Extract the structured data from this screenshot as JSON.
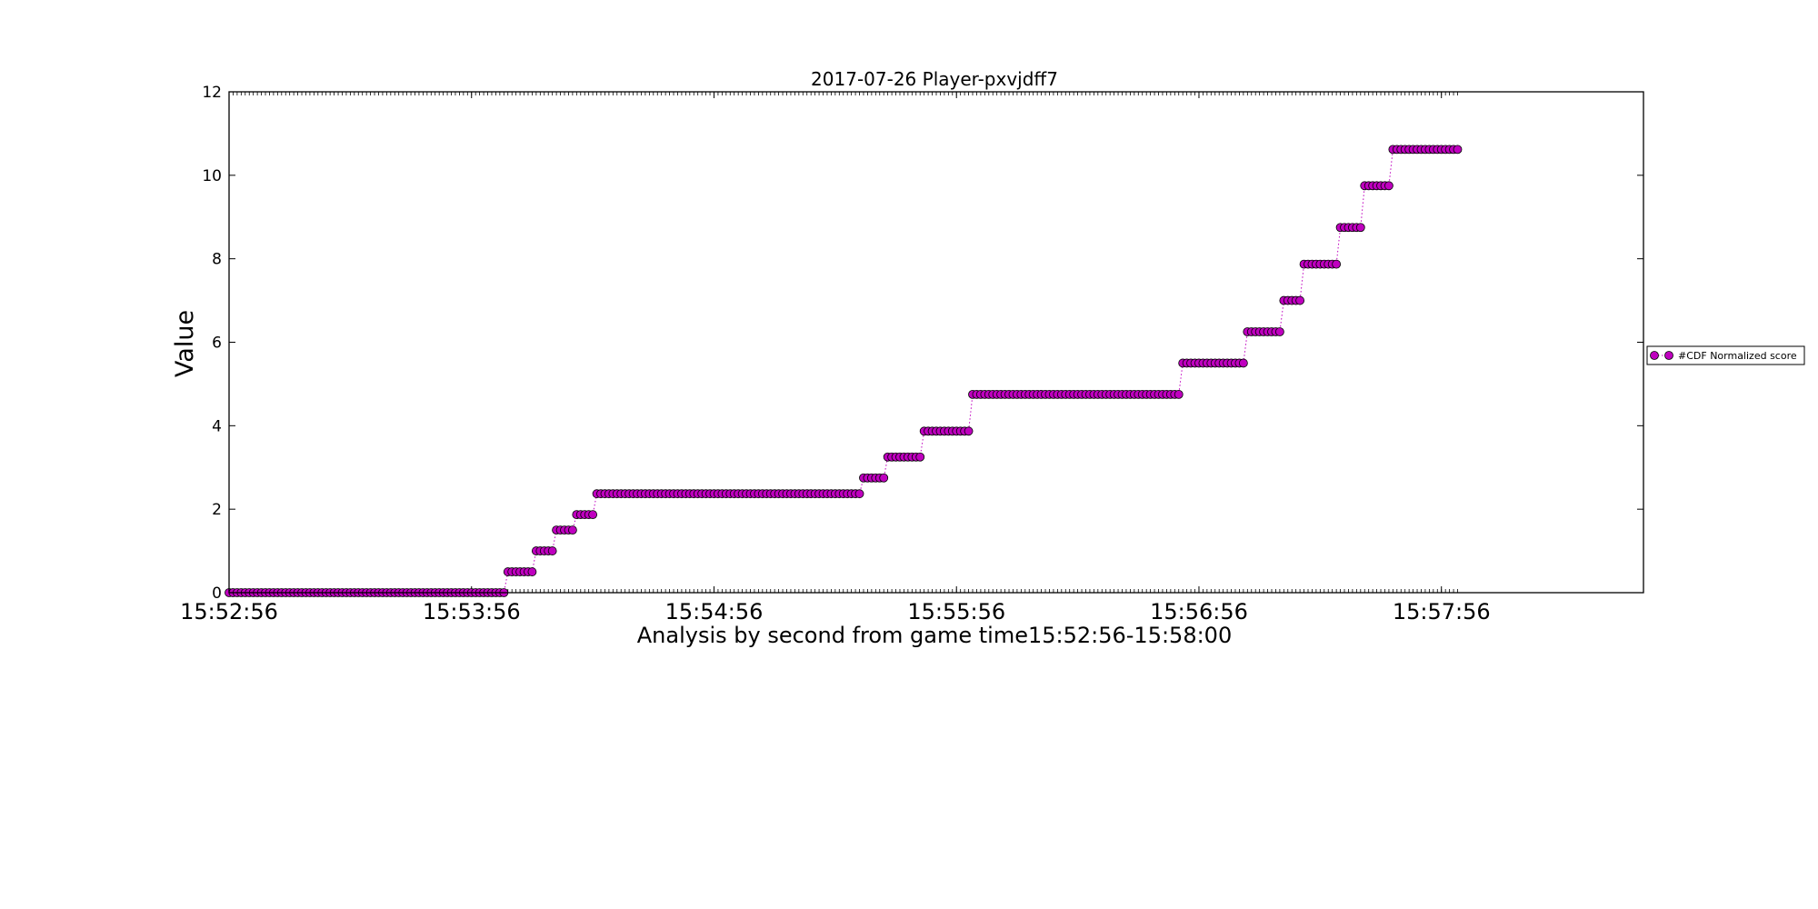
{
  "chart_data": {
    "type": "line",
    "title": "2017-07-26 Player-pxvjdff7",
    "xlabel": "Analysis by second from game time15:52:56-15:58:00",
    "ylabel": "Value",
    "xlim": [
      0,
      350
    ],
    "ylim": [
      0,
      12
    ],
    "yticks": [
      0,
      2,
      4,
      6,
      8,
      10,
      12
    ],
    "xticks": [
      {
        "value": 0,
        "label": "15:52:56"
      },
      {
        "value": 60,
        "label": "15:53:56"
      },
      {
        "value": 120,
        "label": "15:54:56"
      },
      {
        "value": 180,
        "label": "15:55:56"
      },
      {
        "value": 240,
        "label": "15:56:56"
      },
      {
        "value": 300,
        "label": "15:57:56"
      }
    ],
    "x_unit": "seconds since 15:52:56",
    "legend": {
      "location": "right, outside",
      "entries": [
        "#CDF Normalized score"
      ]
    },
    "series": [
      {
        "name": "#CDF Normalized score",
        "color": "#bf00bf",
        "marker": "circle",
        "linestyle": "dotted",
        "step_segments": [
          {
            "x_start": 0,
            "x_end": 68,
            "y": 0.0
          },
          {
            "x_start": 69,
            "x_end": 75,
            "y": 0.5
          },
          {
            "x_start": 76,
            "x_end": 80,
            "y": 1.0
          },
          {
            "x_start": 81,
            "x_end": 85,
            "y": 1.5
          },
          {
            "x_start": 86,
            "x_end": 90,
            "y": 1.87
          },
          {
            "x_start": 91,
            "x_end": 156,
            "y": 2.37
          },
          {
            "x_start": 157,
            "x_end": 162,
            "y": 2.75
          },
          {
            "x_start": 163,
            "x_end": 171,
            "y": 3.25
          },
          {
            "x_start": 172,
            "x_end": 183,
            "y": 3.87
          },
          {
            "x_start": 184,
            "x_end": 235,
            "y": 4.75
          },
          {
            "x_start": 236,
            "x_end": 251,
            "y": 5.5
          },
          {
            "x_start": 252,
            "x_end": 260,
            "y": 6.25
          },
          {
            "x_start": 261,
            "x_end": 265,
            "y": 7.0
          },
          {
            "x_start": 266,
            "x_end": 274,
            "y": 7.87
          },
          {
            "x_start": 275,
            "x_end": 280,
            "y": 8.75
          },
          {
            "x_start": 281,
            "x_end": 287,
            "y": 9.75
          },
          {
            "x_start": 288,
            "x_end": 304,
            "y": 10.62
          }
        ]
      }
    ]
  }
}
